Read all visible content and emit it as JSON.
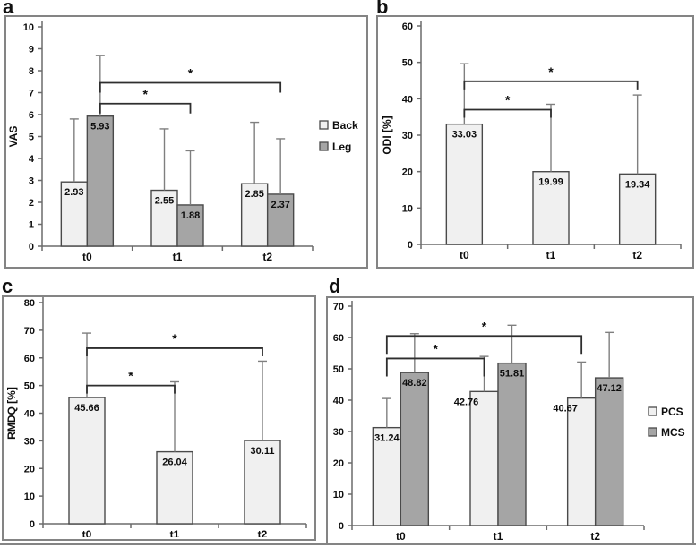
{
  "figure": {
    "colors": {
      "background": "#ffffff",
      "light_fill": "#f0f0f0",
      "dark_fill": "#a5a5a5",
      "bar_border": "#4a4a4a",
      "error": "#7f7f7f",
      "bracket": "#2e2e2e",
      "axis": "#6b6b6b",
      "text": "#0d0d0d",
      "box_border": "#848484"
    }
  },
  "chart_data": [
    {
      "panel_label": "a",
      "type": "bar",
      "title": "",
      "xlabel": "",
      "ylabel": "VAS",
      "ylim": [
        0,
        10
      ],
      "ytick_step": 1,
      "yticks": [
        "0",
        "1",
        "2",
        "3",
        "4",
        "5",
        "6",
        "7",
        "8",
        "9",
        "10"
      ],
      "categories": [
        "t0",
        "t1",
        "t2"
      ],
      "series": [
        {
          "name": "Back",
          "fill": "light",
          "values": [
            2.93,
            2.55,
            2.85
          ],
          "value_labels": [
            "2.93",
            "2.55",
            "2.85"
          ],
          "sd_plus": [
            2.87,
            2.8,
            2.8
          ]
        },
        {
          "name": "Leg",
          "fill": "dark",
          "values": [
            5.93,
            1.88,
            2.37
          ],
          "value_labels": [
            "5.93",
            "1.88",
            "2.37"
          ],
          "sd_plus": [
            2.77,
            2.47,
            2.53
          ]
        }
      ],
      "legend": {
        "items": [
          "Back",
          "Leg"
        ],
        "position": "right-middle"
      },
      "grid": false,
      "brackets": [
        {
          "from_cat": 0,
          "from_series": 1,
          "to_cat": 1,
          "to_series": 1,
          "y": 6.5,
          "label": "*"
        },
        {
          "from_cat": 0,
          "from_series": 1,
          "to_cat": 2,
          "to_series": 1,
          "y": 7.45,
          "label": "*"
        }
      ]
    },
    {
      "panel_label": "b",
      "type": "bar",
      "title": "",
      "xlabel": "",
      "ylabel": "ODI [%]",
      "ylim": [
        0,
        60
      ],
      "ytick_step": 10,
      "yticks": [
        "0",
        "10",
        "20",
        "30",
        "40",
        "50",
        "60"
      ],
      "categories": [
        "t0",
        "t1",
        "t2"
      ],
      "series": [
        {
          "name": "ODI",
          "fill": "light",
          "values": [
            33.03,
            19.99,
            19.34
          ],
          "value_labels": [
            "33.03",
            "19.99",
            "19.34"
          ],
          "sd_plus": [
            16.6,
            18.5,
            21.7
          ]
        }
      ],
      "legend": null,
      "grid": false,
      "brackets": [
        {
          "from_cat": 0,
          "from_series": 0,
          "to_cat": 1,
          "to_series": 0,
          "y": 37.0,
          "label": "*"
        },
        {
          "from_cat": 0,
          "from_series": 0,
          "to_cat": 2,
          "to_series": 0,
          "y": 44.8,
          "label": "*"
        }
      ]
    },
    {
      "panel_label": "c",
      "type": "bar",
      "title": "",
      "xlabel": "",
      "ylabel": "RMDQ [%]",
      "ylim": [
        0,
        80
      ],
      "ytick_step": 10,
      "yticks": [
        "0",
        "10",
        "20",
        "30",
        "40",
        "50",
        "60",
        "70",
        "80"
      ],
      "categories": [
        "t0",
        "t1",
        "t2"
      ],
      "series": [
        {
          "name": "RMDQ",
          "fill": "light",
          "values": [
            45.66,
            26.04,
            30.11
          ],
          "value_labels": [
            "45.66",
            "26.04",
            "30.11"
          ],
          "sd_plus": [
            23.3,
            25.3,
            28.7
          ]
        }
      ],
      "legend": null,
      "grid": false,
      "brackets": [
        {
          "from_cat": 0,
          "from_series": 0,
          "to_cat": 1,
          "to_series": 0,
          "y": 50.0,
          "label": "*"
        },
        {
          "from_cat": 0,
          "from_series": 0,
          "to_cat": 2,
          "to_series": 0,
          "y": 63.5,
          "label": "*"
        }
      ]
    },
    {
      "panel_label": "d",
      "type": "bar",
      "title": "",
      "xlabel": "",
      "ylabel": "",
      "ylim": [
        0,
        70
      ],
      "ytick_step": 10,
      "yticks": [
        "0",
        "10",
        "20",
        "30",
        "40",
        "50",
        "60",
        "70"
      ],
      "categories": [
        "t0",
        "t1",
        "t2"
      ],
      "series": [
        {
          "name": "PCS",
          "fill": "light",
          "values": [
            31.24,
            42.76,
            40.67
          ],
          "value_labels": [
            "31.24",
            "42.76",
            "40.67"
          ],
          "sd_plus": [
            9.3,
            11.2,
            11.5
          ]
        },
        {
          "name": "MCS",
          "fill": "dark",
          "values": [
            48.82,
            51.81,
            47.12
          ],
          "value_labels": [
            "48.82",
            "51.81",
            "47.12"
          ],
          "sd_plus": [
            12.4,
            12.1,
            14.5
          ]
        }
      ],
      "legend": {
        "items": [
          "PCS",
          "MCS"
        ],
        "position": "right-middle"
      },
      "grid": false,
      "brackets": [
        {
          "from_cat": 0,
          "from_series": 0,
          "to_cat": 1,
          "to_series": 0,
          "y": 53.3,
          "label": "*"
        },
        {
          "from_cat": 0,
          "from_series": 0,
          "to_cat": 2,
          "to_series": 0,
          "y": 60.5,
          "label": "*"
        }
      ]
    }
  ]
}
